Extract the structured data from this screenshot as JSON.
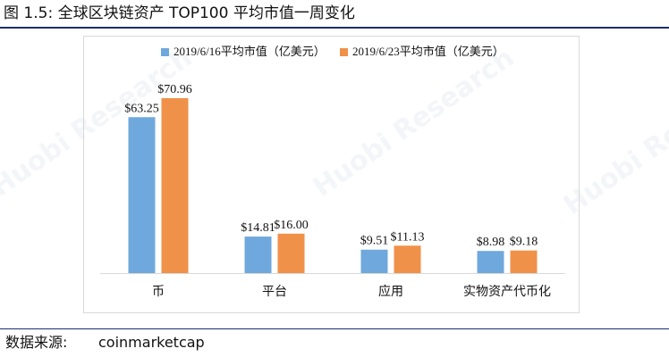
{
  "figure": {
    "title": "图 1.5:  全球区块链资产 TOP100 平均市值一周变化",
    "source_label": "数据来源:",
    "source_value": "coinmarketcap"
  },
  "watermark": {
    "text": "Huobi Research"
  },
  "colors": {
    "series1": "#6fa8dc",
    "series2": "#f0914a",
    "rule": "#1f2d6b"
  },
  "chart_data": {
    "type": "bar",
    "categories": [
      "币",
      "平台",
      "应用",
      "实物资产代币化"
    ],
    "series": [
      {
        "name": "2019/6/16平均市值（亿美元）",
        "values": [
          63.25,
          14.81,
          9.51,
          8.98
        ],
        "labels": [
          "$63.25",
          "$14.81",
          "$9.51",
          "$8.98"
        ]
      },
      {
        "name": "2019/6/23平均市值（亿美元）",
        "values": [
          70.96,
          16.0,
          11.13,
          9.18
        ],
        "labels": [
          "$70.96",
          "$16.00",
          "$11.13",
          "$9.18"
        ]
      }
    ],
    "ylim": [
      0,
      80
    ],
    "grid": false,
    "legend": "top"
  }
}
